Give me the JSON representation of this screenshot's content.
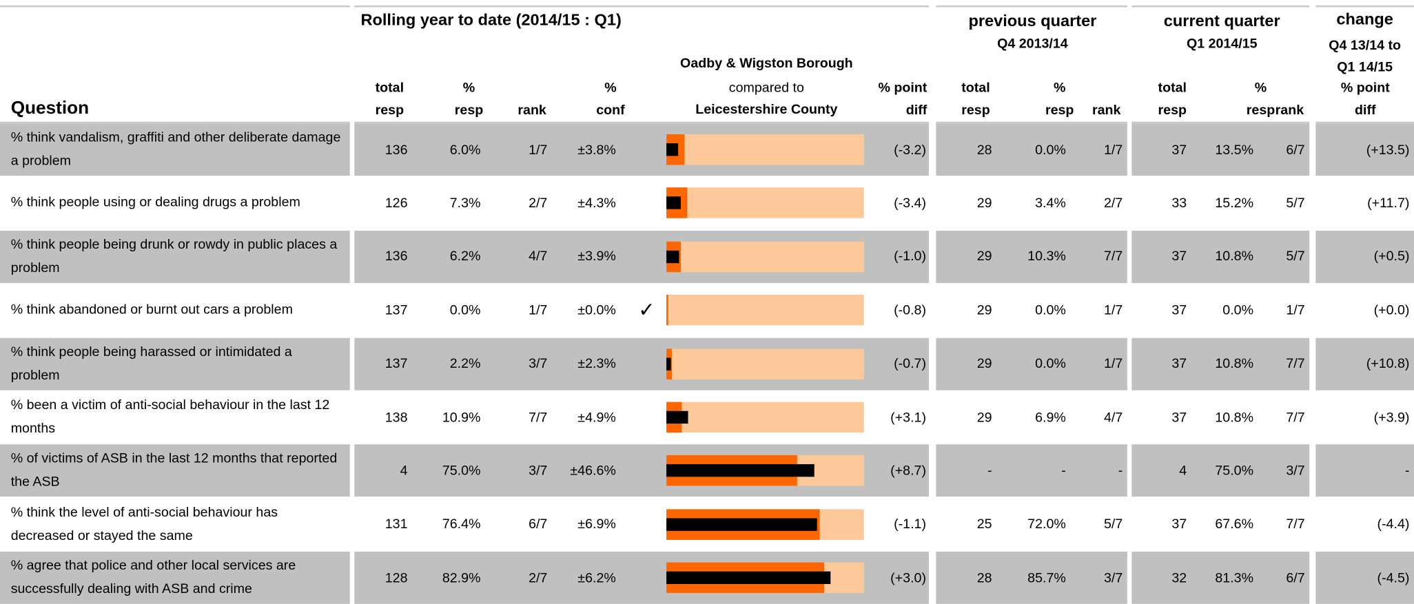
{
  "header": {
    "question": "Question",
    "rolling": "Rolling year to date (2014/15 : Q1)",
    "total_resp": [
      "total",
      "resp"
    ],
    "pct_resp": [
      "%",
      "resp"
    ],
    "rank": "rank",
    "pct_conf": [
      "%",
      "conf"
    ],
    "comparison": [
      "Oadby & Wigston Borough",
      "compared to",
      "Leicestershire County"
    ],
    "point_diff": [
      "% point",
      "diff"
    ],
    "previous": "previous quarter",
    "previous_period": "Q4 2013/14",
    "current": "current quarter",
    "current_period": "Q1 2014/15",
    "change": "change",
    "change_period": [
      "Q4 13/14 to",
      "Q1 14/15"
    ]
  },
  "rows": [
    {
      "question": "% think vandalism, graffiti and other deliberate damage a problem",
      "total": "136",
      "resp": "6.0%",
      "rank": "1/7",
      "conf": "±3.8%",
      "diff": "(-3.2)",
      "prev_total": "28",
      "prev_resp": "0.0%",
      "prev_rank": "1/7",
      "cur_total": "37",
      "cur_resp": "13.5%",
      "cur_rank": "6/7",
      "change": "(+13.5)",
      "bar": {
        "borough": 6.0,
        "county": 9.2
      }
    },
    {
      "question": "% think people using or dealing drugs a problem",
      "total": "126",
      "resp": "7.3%",
      "rank": "2/7",
      "conf": "±4.3%",
      "diff": "(-3.4)",
      "prev_total": "29",
      "prev_resp": "3.4%",
      "prev_rank": "2/7",
      "cur_total": "33",
      "cur_resp": "15.2%",
      "cur_rank": "5/7",
      "change": "(+11.7)",
      "bar": {
        "borough": 7.3,
        "county": 10.7
      }
    },
    {
      "question": "% think people being drunk or rowdy in public places a problem",
      "total": "136",
      "resp": "6.2%",
      "rank": "4/7",
      "conf": "±3.9%",
      "diff": "(-1.0)",
      "prev_total": "29",
      "prev_resp": "10.3%",
      "prev_rank": "7/7",
      "cur_total": "37",
      "cur_resp": "10.8%",
      "cur_rank": "5/7",
      "change": "(+0.5)",
      "bar": {
        "borough": 6.2,
        "county": 7.2
      }
    },
    {
      "question": "% think abandoned or burnt out cars a problem",
      "total": "137",
      "resp": "0.0%",
      "rank": "1/7",
      "conf": "±0.0%",
      "check": "✓",
      "diff": "(-0.8)",
      "prev_total": "29",
      "prev_resp": "0.0%",
      "prev_rank": "1/7",
      "cur_total": "37",
      "cur_resp": "0.0%",
      "cur_rank": "1/7",
      "change": "(+0.0)",
      "bar": {
        "borough": 0.0,
        "county": 0.8
      }
    },
    {
      "question": "% think people being harassed or intimidated a problem",
      "total": "137",
      "resp": "2.2%",
      "rank": "3/7",
      "conf": "±2.3%",
      "diff": "(-0.7)",
      "prev_total": "29",
      "prev_resp": "0.0%",
      "prev_rank": "1/7",
      "cur_total": "37",
      "cur_resp": "10.8%",
      "cur_rank": "7/7",
      "change": "(+10.8)",
      "bar": {
        "borough": 2.2,
        "county": 2.9
      }
    },
    {
      "question": "% been a victim of anti-social behaviour in the last 12 months",
      "total": "138",
      "resp": "10.9%",
      "rank": "7/7",
      "conf": "±4.9%",
      "diff": "(+3.1)",
      "prev_total": "29",
      "prev_resp": "6.9%",
      "prev_rank": "4/7",
      "cur_total": "37",
      "cur_resp": "10.8%",
      "cur_rank": "7/7",
      "change": "(+3.9)",
      "bar": {
        "borough": 10.9,
        "county": 7.8
      }
    },
    {
      "question": "% of victims of ASB in the last 12 months that reported the ASB",
      "total": "4",
      "resp": "75.0%",
      "rank": "3/7",
      "conf": "±46.6%",
      "diff": "(+8.7)",
      "prev_total": "-",
      "prev_resp": "-",
      "prev_rank": "-",
      "cur_total": "4",
      "cur_resp": "75.0%",
      "cur_rank": "3/7",
      "change": "-",
      "bar": {
        "borough": 75.0,
        "county": 66.3
      }
    },
    {
      "question": "% think the level of anti-social behaviour has decreased or stayed the same",
      "total": "131",
      "resp": "76.4%",
      "rank": "6/7",
      "conf": "±6.9%",
      "diff": "(-1.1)",
      "prev_total": "25",
      "prev_resp": "72.0%",
      "prev_rank": "5/7",
      "cur_total": "37",
      "cur_resp": "67.6%",
      "cur_rank": "7/7",
      "change": "(-4.4)",
      "bar": {
        "borough": 76.4,
        "county": 77.5
      }
    },
    {
      "question": "% agree that police and other local services are successfully dealing with ASB and crime",
      "total": "128",
      "resp": "82.9%",
      "rank": "2/7",
      "conf": "±6.2%",
      "diff": "(+3.0)",
      "prev_total": "28",
      "prev_resp": "85.7%",
      "prev_rank": "3/7",
      "cur_total": "32",
      "cur_resp": "81.3%",
      "cur_rank": "6/7",
      "change": "(-4.5)",
      "bar": {
        "borough": 82.9,
        "county": 79.9
      }
    }
  ]
}
